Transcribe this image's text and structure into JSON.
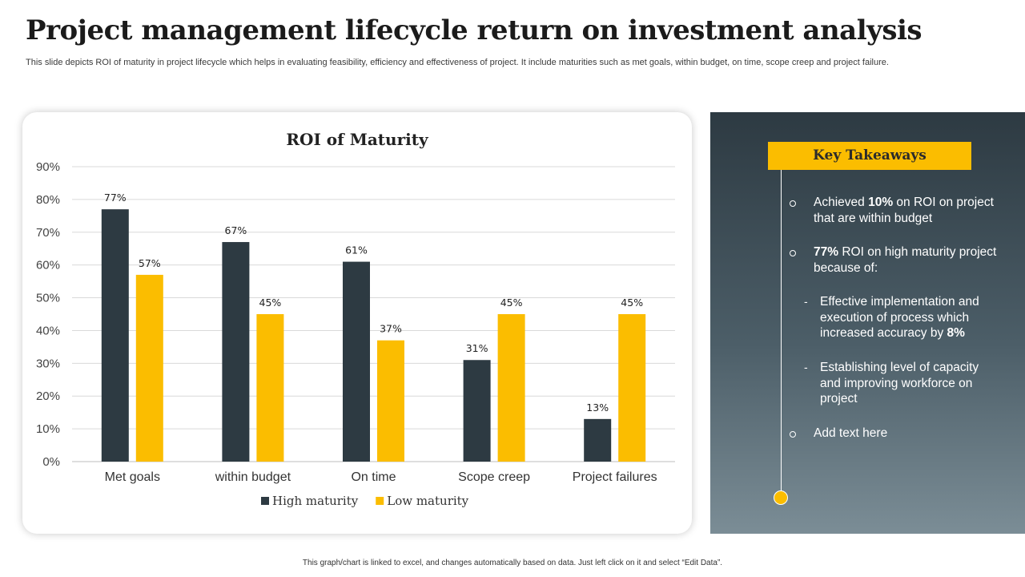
{
  "slide": {
    "title": "Project management lifecycle return on investment analysis",
    "subtitle": "This slide depicts ROI of maturity in project lifecycle which helps in evaluating feasibility, efficiency and effectiveness of project. It include maturities such as met goals, within budget, on time, scope creep and project failure.",
    "footer": "This graph/chart is linked to excel, and changes automatically based on data. Just left click on it and select “Edit Data”."
  },
  "chart_data": {
    "type": "bar",
    "title": "ROI of Maturity",
    "categories": [
      "Met goals",
      "within budget",
      "On time",
      "Scope creep",
      "Project failures"
    ],
    "series": [
      {
        "name": "High maturity",
        "values": [
          77,
          67,
          61,
          31,
          13
        ],
        "color": "#2d3a42"
      },
      {
        "name": "Low maturity",
        "values": [
          57,
          45,
          37,
          45,
          45
        ],
        "color": "#fbbd00"
      }
    ],
    "ylim": [
      0,
      90
    ],
    "yticks": [
      0,
      10,
      20,
      30,
      40,
      50,
      60,
      70,
      80,
      90
    ],
    "value_suffix": "%",
    "grid": true,
    "legend_position": "bottom"
  },
  "takeaways": {
    "heading": "Key Takeaways",
    "item1": {
      "pre": "Achieved ",
      "bold": "10%",
      "post": " on ROI on project that are within budget"
    },
    "item2": {
      "bold": "77%",
      "post": " ROI on high maturity project because of:"
    },
    "sub1": {
      "pre": "Effective implementation and execution of process which increased accuracy by ",
      "bold": "8%"
    },
    "sub2": {
      "text": "Establishing level of capacity and improving workforce on project"
    },
    "item3": {
      "text": "Add text here"
    },
    "accent_color": "#fbbd00"
  }
}
